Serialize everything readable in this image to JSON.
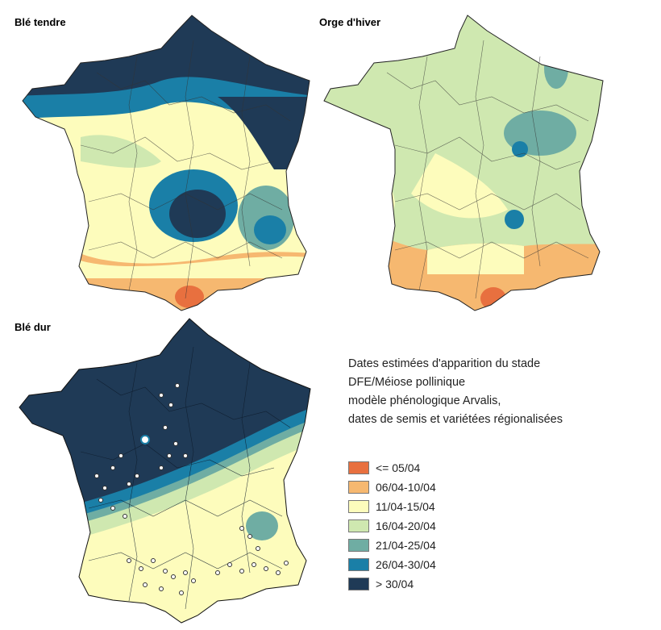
{
  "maps": [
    {
      "title": "Blé tendre"
    },
    {
      "title": "Orge d'hiver"
    },
    {
      "title": "Blé dur"
    }
  ],
  "legend": {
    "description": [
      "Dates estimées d'apparition du stade",
      " DFE/Méiose pollinique",
      "modèle phénologique Arvalis,",
      "dates de semis et variétées régionalisées"
    ],
    "classes": [
      {
        "label": "<= 05/04",
        "color": "#e8703f"
      },
      {
        "label": "06/04-10/04",
        "color": "#f6b870"
      },
      {
        "label": "11/04-15/04",
        "color": "#fdfcbc"
      },
      {
        "label": "16/04-20/04",
        "color": "#cfe8b0"
      },
      {
        "label": "21/04-25/04",
        "color": "#6fada3"
      },
      {
        "label": "26/04-30/04",
        "color": "#1a7fa7"
      },
      {
        "label": "> 30/04",
        "color": "#1f3a56"
      }
    ]
  }
}
